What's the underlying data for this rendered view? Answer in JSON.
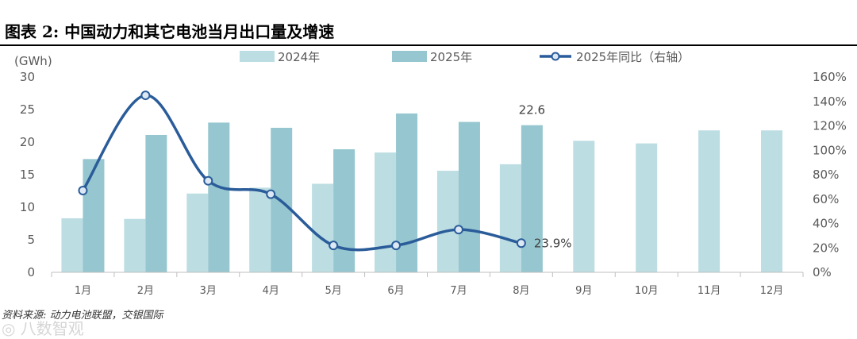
{
  "title": "图表 2: 中国动力和其它电池当月出口量及增速",
  "source": "资料来源: 动力电池联盟，交银国际",
  "watermark": "◎ 八数智观",
  "chart_data": {
    "type": "bar",
    "categories": [
      "1月",
      "2月",
      "3月",
      "4月",
      "5月",
      "6月",
      "7月",
      "8月",
      "9月",
      "10月",
      "11月",
      "12月"
    ],
    "unit_label": "(GWh)",
    "series": [
      {
        "name": "2024年",
        "kind": "bar",
        "color": "#bcdde2",
        "values": [
          8.3,
          8.2,
          12.1,
          13.0,
          13.6,
          18.4,
          15.6,
          16.6,
          20.2,
          19.8,
          21.8,
          21.8
        ]
      },
      {
        "name": "2025年",
        "kind": "bar",
        "color": "#96c6cf",
        "values": [
          17.4,
          21.1,
          23.0,
          22.2,
          18.9,
          24.4,
          23.1,
          22.6,
          null,
          null,
          null,
          null
        ]
      },
      {
        "name": "2025年同比（右轴）",
        "kind": "line",
        "axis": "right",
        "color": "#2a5c9a",
        "values": [
          67,
          145,
          75,
          64,
          22,
          22,
          35,
          23.9,
          null,
          null,
          null,
          null
        ]
      }
    ],
    "left_axis": {
      "min": 0,
      "max": 30,
      "ticks": [
        0,
        5,
        10,
        15,
        20,
        25,
        30
      ]
    },
    "right_axis": {
      "min": 0,
      "max": 160,
      "ticks": [
        0,
        20,
        40,
        60,
        80,
        100,
        120,
        140,
        160
      ],
      "tick_labels": [
        "0%",
        "20%",
        "40%",
        "60%",
        "80%",
        "100%",
        "120%",
        "140%",
        "160%"
      ]
    },
    "data_labels": [
      {
        "series": 1,
        "index": 7,
        "text": "22.6"
      },
      {
        "series": 2,
        "index": 7,
        "text": "23.9%"
      }
    ],
    "legend_position": "top"
  }
}
